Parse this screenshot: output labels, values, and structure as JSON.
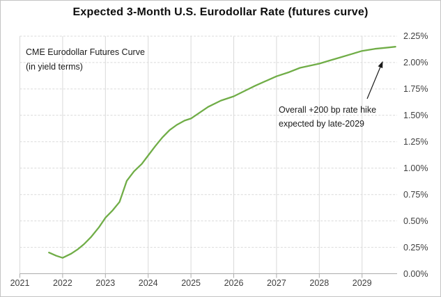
{
  "colors": {
    "line_green": "#70AD47",
    "gridline": "#D9D9D9",
    "axis_line": "#ACACAC",
    "tick_label": "#404040",
    "annotation_text": "#1A1A1A"
  },
  "chart_data": {
    "type": "line",
    "title": "Expected 3-Month U.S. Eurodollar Rate (futures curve)",
    "xlabel": "",
    "ylabel": "",
    "xlim": [
      2021,
      2029.85
    ],
    "ylim": [
      0,
      2.25
    ],
    "grid": true,
    "legend": "none",
    "y_ticks": [
      {
        "value": 0.0,
        "label": "0.00%"
      },
      {
        "value": 0.25,
        "label": "0.25%"
      },
      {
        "value": 0.5,
        "label": "0.50%"
      },
      {
        "value": 0.75,
        "label": "0.75%"
      },
      {
        "value": 1.0,
        "label": "1.00%"
      },
      {
        "value": 1.25,
        "label": "1.25%"
      },
      {
        "value": 1.5,
        "label": "1.50%"
      },
      {
        "value": 1.75,
        "label": "1.75%"
      },
      {
        "value": 2.0,
        "label": "2.00%"
      },
      {
        "value": 2.25,
        "label": "2.25%"
      }
    ],
    "x_ticks": [
      {
        "value": 2021,
        "label": "2021"
      },
      {
        "value": 2022,
        "label": "2022"
      },
      {
        "value": 2023,
        "label": "2023"
      },
      {
        "value": 2024,
        "label": "2024"
      },
      {
        "value": 2025,
        "label": "2025"
      },
      {
        "value": 2026,
        "label": "2026"
      },
      {
        "value": 2027,
        "label": "2027"
      },
      {
        "value": 2028,
        "label": "2028"
      },
      {
        "value": 2029,
        "label": "2029"
      }
    ],
    "series": [
      {
        "name": "CME Eurodollar Futures Curve (in yield terms)",
        "color": "#70AD47",
        "points": [
          [
            2021.68,
            0.2
          ],
          [
            2021.85,
            0.17
          ],
          [
            2022.0,
            0.15
          ],
          [
            2022.2,
            0.19
          ],
          [
            2022.35,
            0.23
          ],
          [
            2022.5,
            0.28
          ],
          [
            2022.67,
            0.35
          ],
          [
            2022.85,
            0.44
          ],
          [
            2023.0,
            0.53
          ],
          [
            2023.17,
            0.6
          ],
          [
            2023.33,
            0.68
          ],
          [
            2023.5,
            0.88
          ],
          [
            2023.67,
            0.97
          ],
          [
            2023.85,
            1.04
          ],
          [
            2024.0,
            1.12
          ],
          [
            2024.17,
            1.21
          ],
          [
            2024.33,
            1.29
          ],
          [
            2024.5,
            1.36
          ],
          [
            2024.67,
            1.41
          ],
          [
            2024.85,
            1.45
          ],
          [
            2025.0,
            1.47
          ],
          [
            2025.4,
            1.58
          ],
          [
            2025.7,
            1.64
          ],
          [
            2026.0,
            1.68
          ],
          [
            2026.3,
            1.74
          ],
          [
            2026.5,
            1.78
          ],
          [
            2027.0,
            1.87
          ],
          [
            2027.3,
            1.91
          ],
          [
            2027.55,
            1.95
          ],
          [
            2028.0,
            1.99
          ],
          [
            2028.25,
            2.02
          ],
          [
            2028.5,
            2.05
          ],
          [
            2028.75,
            2.08
          ],
          [
            2029.0,
            2.11
          ],
          [
            2029.3,
            2.13
          ],
          [
            2029.55,
            2.14
          ],
          [
            2029.78,
            2.15
          ]
        ]
      }
    ],
    "annotations": [
      {
        "name": "curve-label",
        "lines": [
          "CME Eurodollar Futures Curve",
          "(in yield terms)"
        ]
      },
      {
        "name": "rate-hike-callout",
        "lines": [
          "Overall +200 bp rate hike",
          "expected by late-2029"
        ],
        "arrow_points_to": "end of curve (late-2029, ~2.15%)"
      }
    ]
  }
}
